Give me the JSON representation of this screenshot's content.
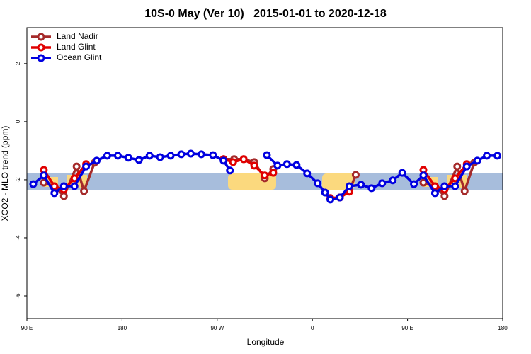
{
  "chart_data": {
    "type": "line",
    "title": "10S-0 May (Ver 10)   2015-01-01 to 2020-12-18",
    "x_label": "Longitude",
    "y_label": "XCO2 - MLO trend (ppm)",
    "xlim": [
      90,
      540
    ],
    "xticks": [
      {
        "value": 90,
        "label": "90 E"
      },
      180,
      {
        "value": 270,
        "label": "90 W"
      },
      {
        "value": 360,
        "label": "0"
      },
      {
        "value": 450,
        "label": "90 E"
      },
      {
        "value": 540,
        "label": "180"
      }
    ],
    "ylim": [
      -6.78,
      3.24
    ],
    "yticks": [
      2,
      0,
      -2,
      -4,
      -6
    ],
    "legend": "top-left",
    "series": [
      {
        "name": "Land Nadir",
        "color": "#a52a2a",
        "x": [
          106,
          116,
          125,
          137,
          144,
          154,
          200,
          276,
          286,
          295,
          305,
          315,
          323,
          350,
          377,
          386,
          395,
          401,
          420,
          465,
          476,
          485,
          497,
          504,
          513
        ],
        "values": [
          -2.1,
          -2.22,
          -2.56,
          -1.54,
          -2.39,
          -1.41,
          null,
          -1.29,
          -1.29,
          -1.29,
          -1.39,
          -1.95,
          -1.63,
          null,
          -2.66,
          -2.61,
          -2.39,
          -1.83,
          null,
          -2.1,
          -2.22,
          -2.56,
          -1.54,
          -2.39,
          -1.41
        ]
      },
      {
        "name": "Land Glint",
        "color": "#e00000",
        "x": [
          106,
          116,
          125,
          135,
          146,
          200,
          276,
          285,
          295,
          305,
          315,
          323,
          350,
          377,
          386,
          395,
          420,
          465,
          476,
          485,
          495,
          506
        ],
        "values": [
          -1.66,
          -2.22,
          -2.34,
          -1.95,
          -1.46,
          null,
          -1.29,
          -1.39,
          -1.29,
          -1.51,
          -1.85,
          -1.76,
          null,
          -2.63,
          -2.61,
          -2.41,
          null,
          -1.66,
          -2.22,
          -2.34,
          -1.95,
          -1.46
        ]
      },
      {
        "name": "Ocean Glint",
        "color": "#0000e0",
        "x": [
          96,
          106,
          116,
          125,
          135,
          146,
          156,
          166,
          176,
          186,
          196,
          206,
          216,
          226,
          236,
          245,
          255,
          266,
          276,
          282,
          300,
          317,
          327,
          336,
          345,
          355,
          365,
          372,
          377,
          386,
          395,
          406,
          416,
          426,
          436,
          445,
          456,
          465,
          476,
          485,
          495,
          506,
          516,
          525,
          535
        ],
        "values": [
          -2.15,
          -1.85,
          -2.46,
          -2.22,
          -2.22,
          -1.54,
          -1.34,
          -1.17,
          -1.17,
          -1.24,
          -1.32,
          -1.17,
          -1.22,
          -1.17,
          -1.12,
          -1.1,
          -1.12,
          -1.15,
          -1.34,
          -1.68,
          null,
          -1.15,
          -1.51,
          -1.46,
          -1.49,
          -1.78,
          -2.12,
          -2.44,
          -2.68,
          -2.61,
          -2.22,
          -2.17,
          -2.29,
          -2.12,
          -2.02,
          -1.76,
          -2.15,
          -1.85,
          -2.46,
          -2.22,
          -2.22,
          -1.54,
          -1.34,
          -1.17,
          -1.17
        ]
      }
    ]
  }
}
